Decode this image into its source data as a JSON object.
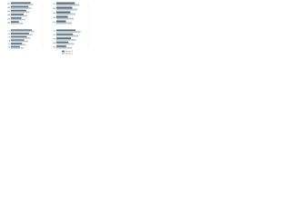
{
  "chart_data": [
    {
      "type": "barh",
      "categories": [
        "A1",
        "A2",
        "A3",
        "A4",
        "A5",
        "A6"
      ],
      "xlim": [
        0,
        100
      ],
      "xticks": [
        0,
        50,
        100
      ],
      "series": [
        {
          "color": "#5d6d7a",
          "values": [
            62,
            55,
            48,
            40,
            33,
            25
          ]
        },
        {
          "color": "#bcc7cf",
          "values": [
            70,
            64,
            58,
            52,
            45,
            38
          ]
        }
      ]
    },
    {
      "type": "barh",
      "categories": [
        "B1",
        "B2",
        "B3",
        "B4",
        "B5"
      ],
      "xlim": [
        0,
        100
      ],
      "xticks": [
        0,
        50,
        100
      ],
      "series": [
        {
          "color": "#5d6d7a",
          "values": [
            58,
            50,
            44,
            36,
            30
          ]
        },
        {
          "color": "#bcc7cf",
          "values": [
            72,
            66,
            60,
            54,
            48
          ]
        }
      ]
    },
    {
      "type": "barh",
      "categories": [
        "C1",
        "C2",
        "C3",
        "C4",
        "C5",
        "C6"
      ],
      "xlim": [
        0,
        100
      ],
      "xticks": [
        0,
        50,
        100
      ],
      "series": [
        {
          "color": "#5d6d7a",
          "values": [
            66,
            57,
            50,
            42,
            35,
            28
          ]
        },
        {
          "color": "#bcc7cf",
          "values": [
            74,
            68,
            61,
            55,
            47,
            40
          ]
        }
      ]
    },
    {
      "type": "barh",
      "categories": [
        "D1",
        "D2",
        "D3",
        "D4",
        "D5"
      ],
      "xlim": [
        0,
        100
      ],
      "xticks": [
        0,
        50,
        100
      ],
      "series": [
        {
          "color": "#5d6d7a",
          "values": [
            60,
            52,
            46,
            38,
            31
          ]
        },
        {
          "color": "#bcc7cf",
          "values": [
            76,
            69,
            62,
            56,
            49
          ]
        }
      ]
    }
  ],
  "legend": [
    {
      "name": "Series 1",
      "color": "#5d6d7a"
    },
    {
      "name": "Series 2",
      "color": "#bcc7cf"
    }
  ]
}
